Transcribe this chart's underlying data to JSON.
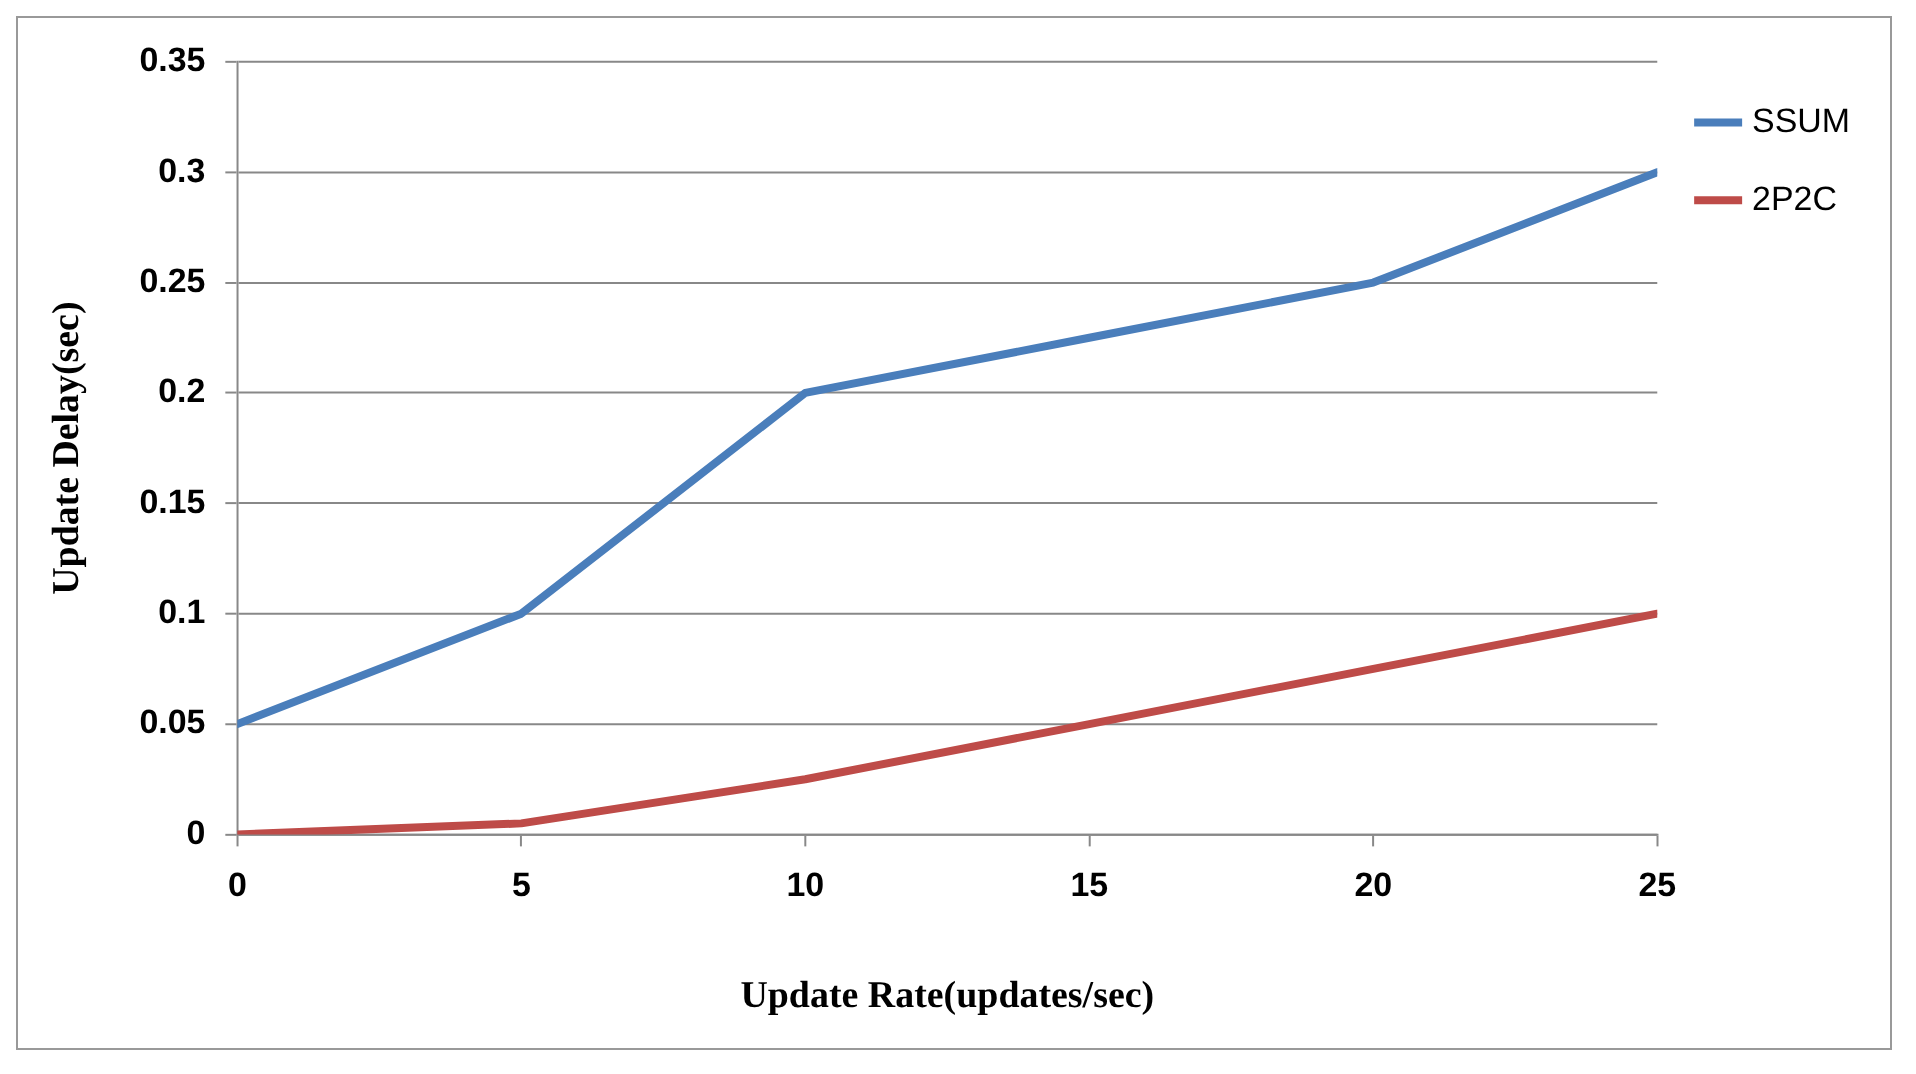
{
  "chart_data": {
    "type": "line",
    "xlabel": "Update Rate(updates/sec)",
    "ylabel": "Update Delay(sec)",
    "x": [
      0,
      5,
      10,
      15,
      20,
      25
    ],
    "series": [
      {
        "name": "SSUM",
        "color": "#4a7ebb",
        "values": [
          0.05,
          0.1,
          0.2,
          0.225,
          0.25,
          0.3
        ]
      },
      {
        "name": "2P2C",
        "color": "#be4b48",
        "values": [
          0,
          0.005,
          0.025,
          0.05,
          0.075,
          0.1
        ]
      }
    ],
    "xlim": [
      0,
      25
    ],
    "xticks": [
      0,
      5,
      10,
      15,
      20,
      25
    ],
    "ylim": [
      0,
      0.35
    ],
    "yticks": [
      0,
      0.05,
      0.1,
      0.15,
      0.2,
      0.25,
      0.3,
      0.35
    ],
    "grid": "y",
    "legend": "top right",
    "marker": "none",
    "line_style": "solid"
  }
}
